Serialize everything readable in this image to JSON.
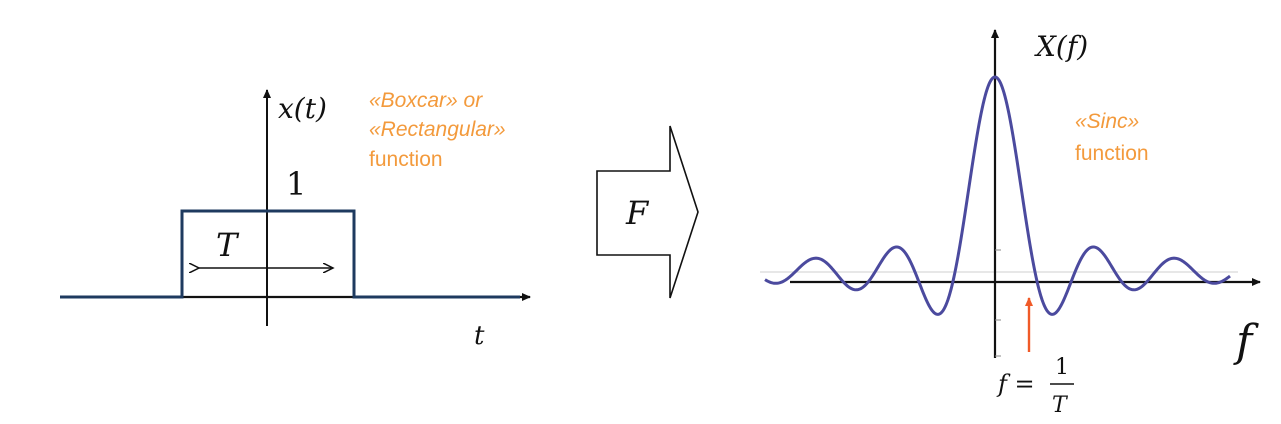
{
  "boxcar": {
    "axis_label_y": "x(t)",
    "axis_label_x": "t",
    "height_label": "1",
    "width_label": "T",
    "caption_line1": "«Boxcar» or",
    "caption_line2": "«Rectangular»",
    "caption_line3": "function"
  },
  "transform": {
    "label": "F"
  },
  "sinc": {
    "axis_label_y": "X(f)",
    "axis_label_x": "f",
    "caption_line1": "«Sinc»",
    "caption_line2": "function",
    "marker_lhs": "f =",
    "marker_num": "1",
    "marker_den": "T"
  },
  "colors": {
    "curve": "#4b4a9e",
    "pulse": "#1e3a5f",
    "axis": "#111111",
    "accent": "#f39a3c",
    "marker": "#f05a28"
  }
}
